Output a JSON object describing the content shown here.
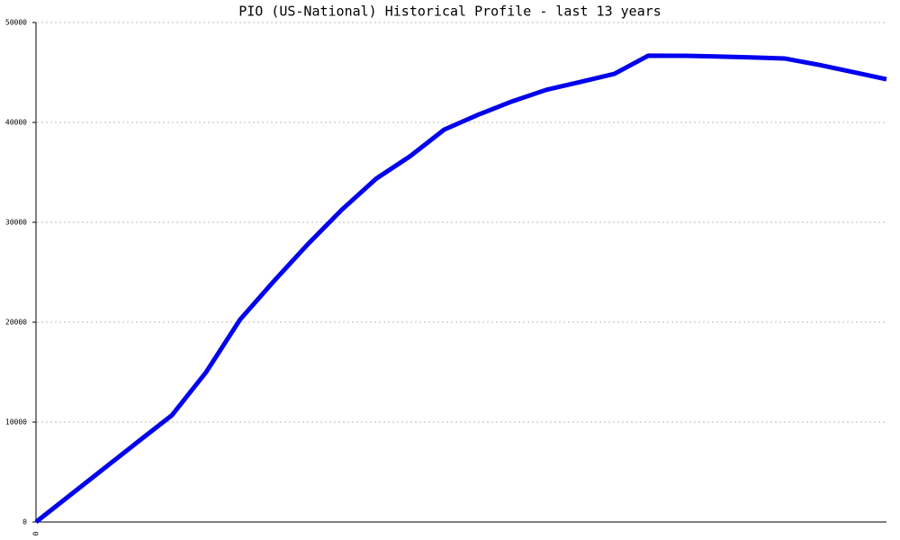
{
  "chart_data": {
    "type": "line",
    "title": "PIO (US-National) Historical Profile - last 13 years",
    "categories": [
      "0",
      null,
      null,
      null,
      null,
      null,
      null,
      null,
      null,
      null,
      null,
      null,
      null,
      null,
      null,
      null,
      null,
      null,
      null,
      null,
      null,
      null,
      null,
      null,
      null,
      null
    ],
    "series": [
      {
        "color": "#0000ee",
        "values": [
          0,
          2680,
          5360,
          8040,
          10700,
          15000,
          20270,
          24140,
          27840,
          31290,
          34370,
          36620,
          39280,
          40770,
          42110,
          43260,
          44050,
          44860,
          46680,
          46670,
          46600,
          46510,
          46400,
          45770,
          45050,
          44320
        ]
      }
    ],
    "ylim": [
      0,
      50000
    ],
    "yticks": [
      0,
      10000,
      20000,
      30000,
      40000,
      50000
    ],
    "grid": true
  }
}
